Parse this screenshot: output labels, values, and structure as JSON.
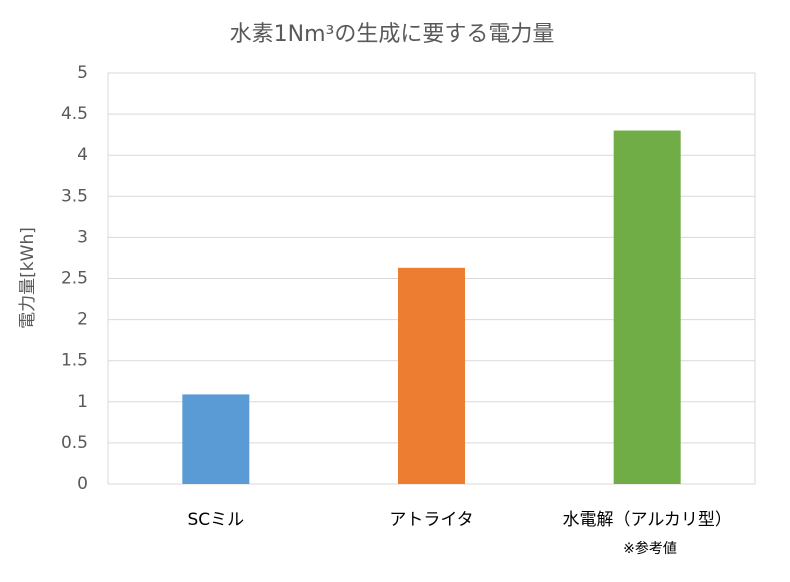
{
  "chart_data": {
    "type": "bar",
    "title": "水素1Nm³の生成に要する電力量",
    "y_label": "電力量[kWh]",
    "categories": [
      "SCミル",
      "アトライタ",
      "水電解（アルカリ型）"
    ],
    "values": [
      1.09,
      2.63,
      4.3
    ],
    "colors": [
      "#5b9bd5",
      "#ed7d31",
      "#70ad47"
    ],
    "annotation": "※参考値",
    "ylim": [
      0,
      5
    ],
    "yticks": [
      0,
      0.5,
      1,
      1.5,
      2,
      2.5,
      3,
      3.5,
      4,
      4.5,
      5
    ],
    "grid": true
  }
}
